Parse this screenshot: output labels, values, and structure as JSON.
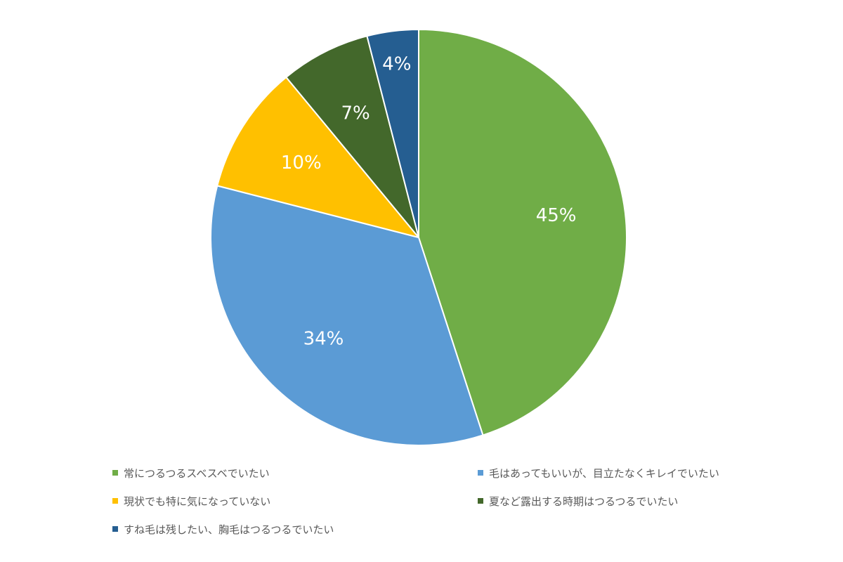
{
  "chart_data": {
    "type": "pie",
    "categories": [
      "常につるつるスベスベでいたい",
      "毛はあってもいいが、目立たなくキレイでいたい",
      "現状でも特に気になっていない",
      "夏など露出する時期はつるつるでいたい",
      "すね毛は残したい、胸毛はつるつるでいたい"
    ],
    "values": [
      45,
      34,
      10,
      7,
      4
    ],
    "labels": [
      "45%",
      "34%",
      "10%",
      "7%",
      "4%"
    ],
    "colors": [
      "#70AD47",
      "#5B9BD5",
      "#FFC000",
      "#43682B",
      "#255E91"
    ],
    "title": "",
    "legend_position": "bottom"
  }
}
